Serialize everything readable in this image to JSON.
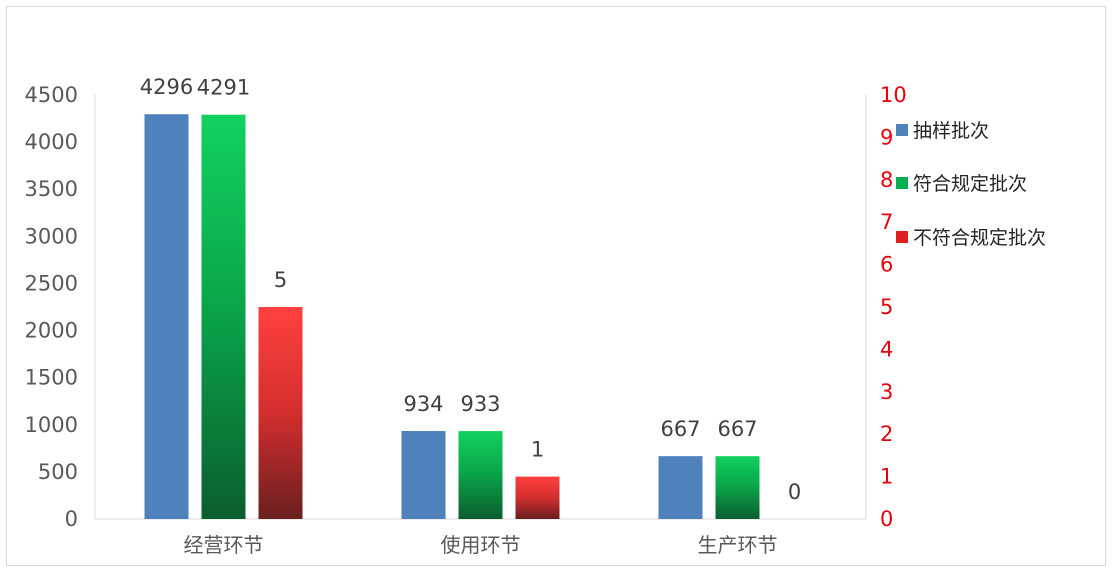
{
  "chart_data": {
    "type": "bar",
    "categories": [
      "经营环节",
      "使用环节",
      "生产环节"
    ],
    "series": [
      {
        "name": "抽样批次",
        "axis": "left",
        "values": [
          4296,
          934,
          667
        ],
        "color": "#4f81bd"
      },
      {
        "name": "符合规定批次",
        "axis": "left",
        "values": [
          4291,
          933,
          667
        ],
        "color": "#00b050"
      },
      {
        "name": "不符合规定批次",
        "axis": "right",
        "values": [
          5,
          1,
          0
        ],
        "color": "#ff3b3b"
      }
    ],
    "y_left": {
      "min": 0,
      "max": 4500,
      "step": 500
    },
    "y_right": {
      "min": 0,
      "max": 10,
      "step": 1,
      "color": "#e8000b"
    },
    "legend_position": "right",
    "grid": false
  }
}
